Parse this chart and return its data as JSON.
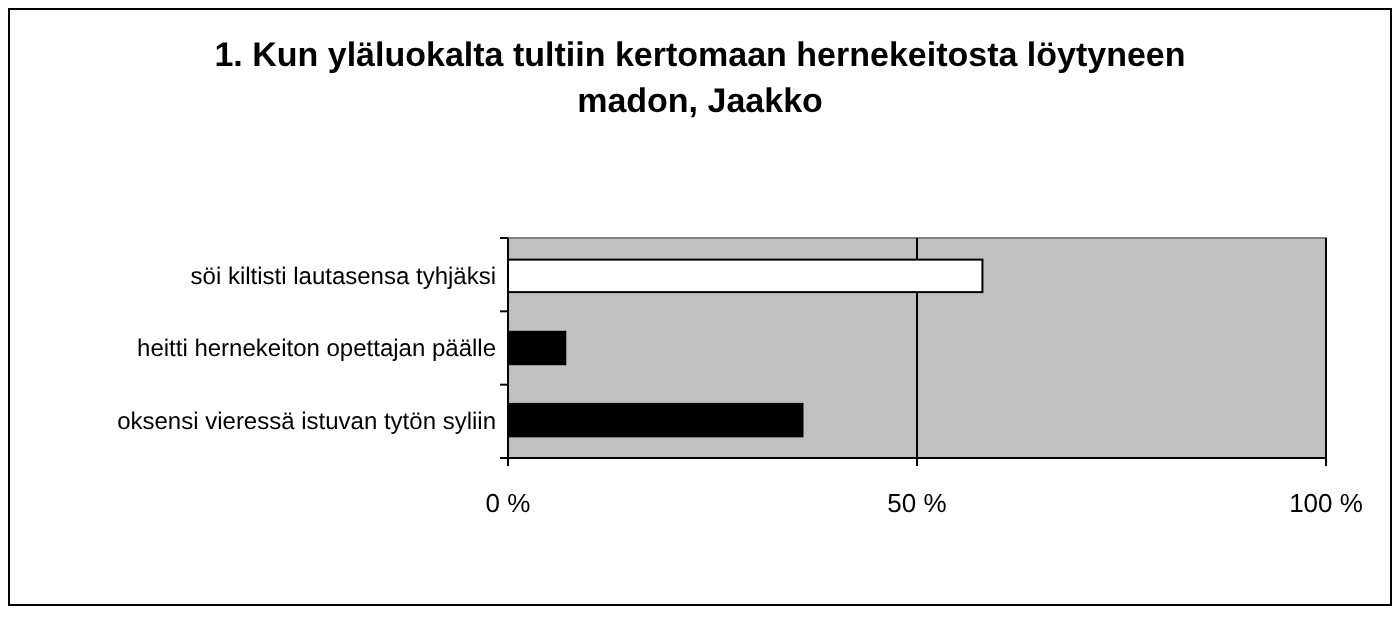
{
  "chart_data": {
    "type": "bar",
    "orientation": "horizontal",
    "title": "1. Kun yläluokalta tultiin kertomaan hernekeitosta löytyneen madon, Jaakko",
    "categories": [
      "söi kiltisti lautasensa tyhjäksi",
      "heitti hernekeiton opettajan päälle",
      "oksensi vieressä istuvan tytön syliin"
    ],
    "values": [
      58,
      7,
      36
    ],
    "colors": [
      "#ffffff",
      "#000000",
      "#000000"
    ],
    "xlim": [
      0,
      100
    ],
    "xticks": [
      {
        "value": 0,
        "label": "0 %"
      },
      {
        "value": 50,
        "label": "50 %"
      },
      {
        "value": 100,
        "label": "100 %"
      }
    ],
    "grid": "x"
  }
}
